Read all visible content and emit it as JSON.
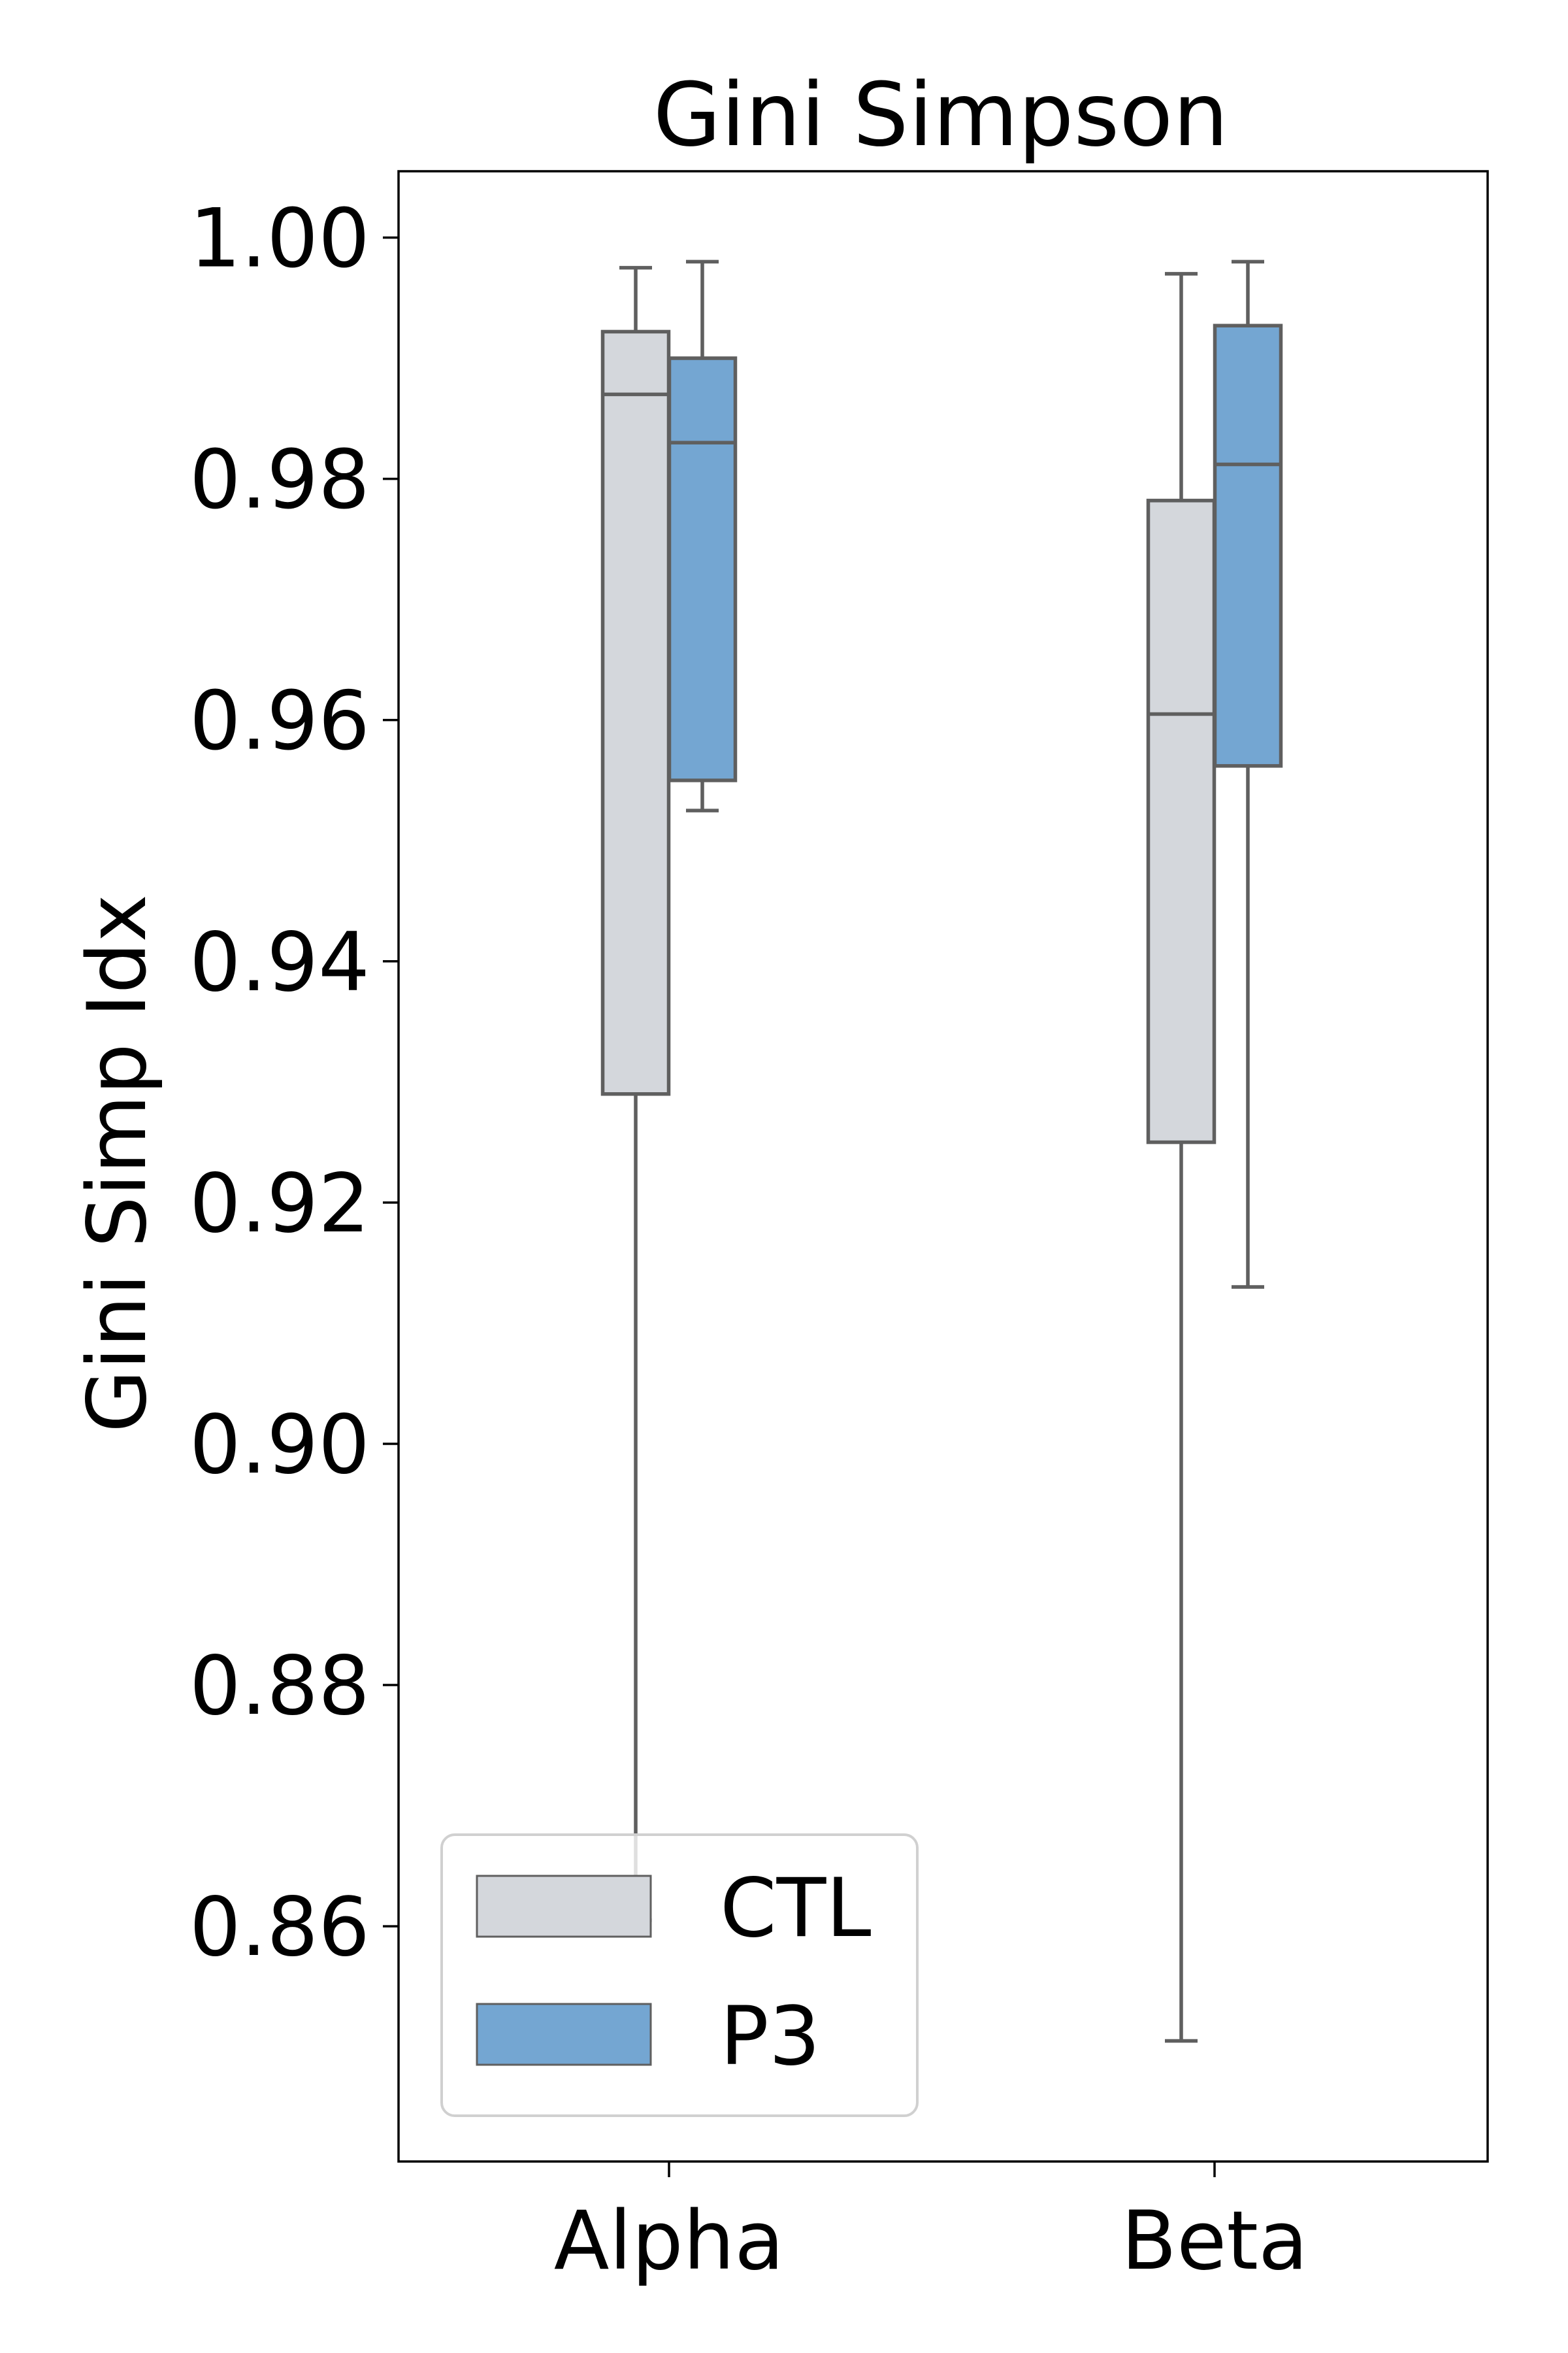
{
  "chart_data": {
    "type": "box",
    "title": "Gini Simpson",
    "xlabel": "",
    "ylabel": "Gini Simp Idx",
    "categories": [
      "Alpha",
      "Beta"
    ],
    "ylim": [
      0.8405,
      1.0055
    ],
    "yticks": [
      0.86,
      0.88,
      0.9,
      0.92,
      0.94,
      0.96,
      0.98,
      1.0
    ],
    "ytick_labels": [
      "0.86",
      "0.88",
      "0.90",
      "0.92",
      "0.94",
      "0.96",
      "0.98",
      "1.00"
    ],
    "grid": false,
    "legend_position": "lower-left",
    "series": [
      {
        "name": "CTL",
        "color": "#d4d7dc",
        "boxes": [
          {
            "whislo": 0.8605,
            "q1": 0.929,
            "med": 0.987,
            "q3": 0.9922,
            "whishi": 0.9975
          },
          {
            "whislo": 0.8505,
            "q1": 0.925,
            "med": 0.9605,
            "q3": 0.9782,
            "whishi": 0.997
          }
        ]
      },
      {
        "name": "P3",
        "color": "#74a6d2",
        "boxes": [
          {
            "whislo": 0.9525,
            "q1": 0.955,
            "med": 0.983,
            "q3": 0.99,
            "whishi": 0.998
          },
          {
            "whislo": 0.913,
            "q1": 0.9562,
            "med": 0.9812,
            "q3": 0.9927,
            "whishi": 0.998
          }
        ]
      }
    ],
    "edge_color": "#5f5f5f"
  }
}
